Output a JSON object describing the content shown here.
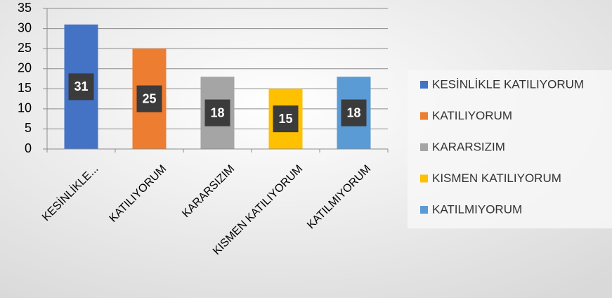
{
  "chart_data": {
    "type": "bar",
    "categories": [
      "KESİNLİKLE...",
      "KATILIYORUM",
      "KARARSIZIM",
      "KISMEN KATILIYORUM",
      "KATILMIYORUM"
    ],
    "values": [
      31,
      25,
      18,
      15,
      18
    ],
    "colors": [
      "#4472c4",
      "#ed7d31",
      "#a5a5a5",
      "#ffc000",
      "#5b9bd5"
    ],
    "legend_labels": [
      "KESİNLİKLE KATILIYORUM",
      "KATILIYORUM",
      "KARARSIZIM",
      "KISMEN KATILIYORUM",
      "KATILMIYORUM"
    ],
    "legend_position": "right",
    "ylim": [
      0,
      35
    ],
    "yticks": [
      0,
      5,
      10,
      15,
      20,
      25,
      30,
      35
    ],
    "grid": true
  }
}
